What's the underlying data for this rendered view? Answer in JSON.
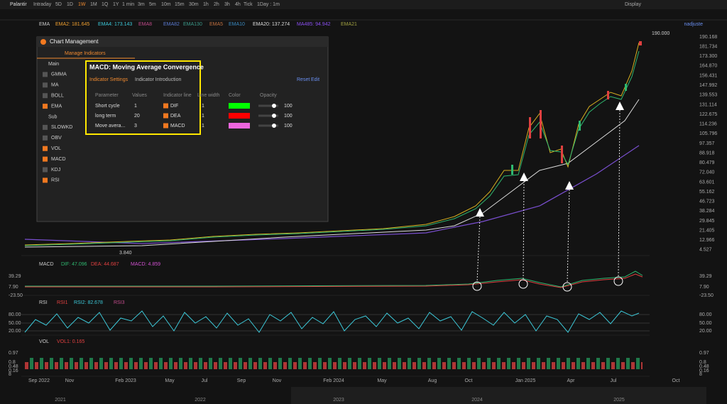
{
  "toolbar": {
    "symbol": "Palantir",
    "periods": [
      "Intraday",
      "5D",
      "1D",
      "1W",
      "1M",
      "1Q",
      "1Y",
      "1 min",
      "3m",
      "5m",
      "10m",
      "15m",
      "30m",
      "1h",
      "2h",
      "3h",
      "4h",
      "Tick"
    ],
    "interval": "1Day : 1m",
    "display": "Display"
  },
  "main": {
    "indicator": "EMA",
    "legend": [
      "EMA2: 181.645",
      "EMA4: 173.143",
      "EMA8",
      "EMA82",
      "EMA130",
      "EMA5",
      "EMA10",
      "EMA20: 137.274",
      "MA485: 94.942",
      "EMA21"
    ],
    "adjust": "nadjuste",
    "high": "190.000",
    "low": "3.840",
    "price_axis": [
      "190.168",
      "181.734",
      "173.300",
      "164.870",
      "156.431",
      "147.992",
      "139.553",
      "131.114",
      "122.675",
      "114.236",
      "105.796",
      "97.357",
      "88.918",
      "80.479",
      "72.040",
      "63.601",
      "55.162",
      "46.723",
      "38.284",
      "29.845",
      "21.405",
      "12.966",
      "4.527"
    ]
  },
  "macd": {
    "name": "MACD",
    "legend": [
      "DIF: 47.096",
      "DEA: 44.687",
      "MACD: 4.859"
    ],
    "axis": [
      "39.29",
      "7.90",
      "-23.50"
    ]
  },
  "rsi": {
    "name": "RSI",
    "legend": [
      "RSI1",
      "RSI2: 82.678",
      "RSI3"
    ],
    "axis": [
      "80.00",
      "50.00",
      "20.00"
    ]
  },
  "vol": {
    "name": "VOL",
    "legend": [
      "VOL1: 0.165"
    ],
    "axis": [
      "0.97",
      "0.8",
      "0.48",
      "0.16",
      "8"
    ]
  },
  "time_axis": {
    "months": [
      "Sep 2022",
      "Nov",
      "Feb 2023",
      "May",
      "Jul",
      "Sep",
      "Nov",
      "Feb 2024",
      "May",
      "Aug",
      "Oct",
      "Jan 2025",
      "Apr",
      "Jul",
      "Oct"
    ],
    "years": [
      "2021",
      "2022",
      "2023",
      "2024",
      "2025"
    ]
  },
  "dialog": {
    "title": "Chart Management",
    "tab": "Manage Indicators",
    "list": [
      {
        "label": "Main",
        "group": true
      },
      {
        "label": "GMMA",
        "checked": false
      },
      {
        "label": "MA",
        "checked": false
      },
      {
        "label": "BOLL",
        "checked": false
      },
      {
        "label": "EMA",
        "checked": true
      },
      {
        "label": "Sub",
        "group": true
      },
      {
        "label": "SLOWKD",
        "checked": false
      },
      {
        "label": "OBV",
        "checked": false
      },
      {
        "label": "VOL",
        "checked": true
      },
      {
        "label": "MACD",
        "checked": true
      },
      {
        "label": "KDJ",
        "checked": false
      },
      {
        "label": "RSI",
        "checked": true
      }
    ],
    "panel": {
      "title": "MACD: Moving Average Convergence",
      "tabs": [
        "Indicator Settings",
        "Indicator Introduction"
      ],
      "reset": "Reset",
      "edit": "Edit",
      "headers": [
        "Parameter",
        "Values",
        "Indicator line",
        "Line width",
        "Color",
        "Opacity"
      ],
      "rows": [
        {
          "param": "Short cycle",
          "value": "1",
          "line": "DIF",
          "width": "1",
          "color": "#00ff00",
          "opacity": "100"
        },
        {
          "param": "long term",
          "value": "20",
          "line": "DEA",
          "width": "1",
          "color": "#ff0000",
          "opacity": "100"
        },
        {
          "param": "Move avera...",
          "value": "3",
          "line": "MACD",
          "width": "1",
          "color": "#ee66dd",
          "opacity": "100"
        }
      ]
    }
  }
}
